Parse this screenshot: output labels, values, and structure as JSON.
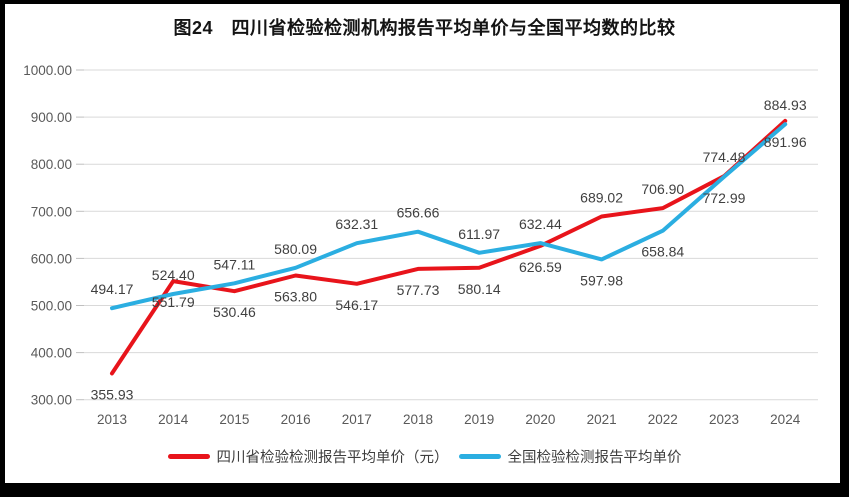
{
  "figure": {
    "title": "图24　四川省检验检测机构报告平均单价与全国平均数的比较"
  },
  "chart_data": {
    "type": "line",
    "title": "图24　四川省检验检测机构报告平均单价与全国平均数的比较",
    "x": [
      "2013",
      "2014",
      "2015",
      "2016",
      "2017",
      "2018",
      "2019",
      "2020",
      "2021",
      "2022",
      "2023",
      "2024"
    ],
    "series": [
      {
        "key": "sichuan",
        "name": "四川省检验检测报告平均单价（元）",
        "color": "#e8141b",
        "values": [
          355.93,
          551.79,
          530.46,
          563.8,
          546.17,
          577.73,
          580.14,
          626.59,
          689.02,
          706.9,
          774.48,
          891.96
        ],
        "label_side": [
          "below",
          "below",
          "below",
          "below",
          "below",
          "below",
          "below",
          "below",
          "above",
          "above",
          "above",
          "below"
        ]
      },
      {
        "key": "national",
        "name": "全国检验检测报告平均单价",
        "color": "#2baee1",
        "values": [
          494.17,
          524.4,
          547.11,
          580.09,
          632.31,
          656.66,
          611.97,
          632.44,
          597.98,
          658.84,
          772.99,
          884.93
        ],
        "label_side": [
          "above",
          "above",
          "above",
          "above",
          "above",
          "above",
          "above",
          "above",
          "below",
          "below",
          "below",
          "above"
        ]
      }
    ],
    "ylim": [
      300,
      1000
    ],
    "ytick_step": 100,
    "grid": true,
    "legend_position": "bottom",
    "colors": {
      "grid": "#d9d9d9",
      "tick": "#bfbfbf",
      "axis_text": "#595959",
      "data_label_text": "#404040",
      "frame": "#000000",
      "background": "#ffffff"
    }
  }
}
